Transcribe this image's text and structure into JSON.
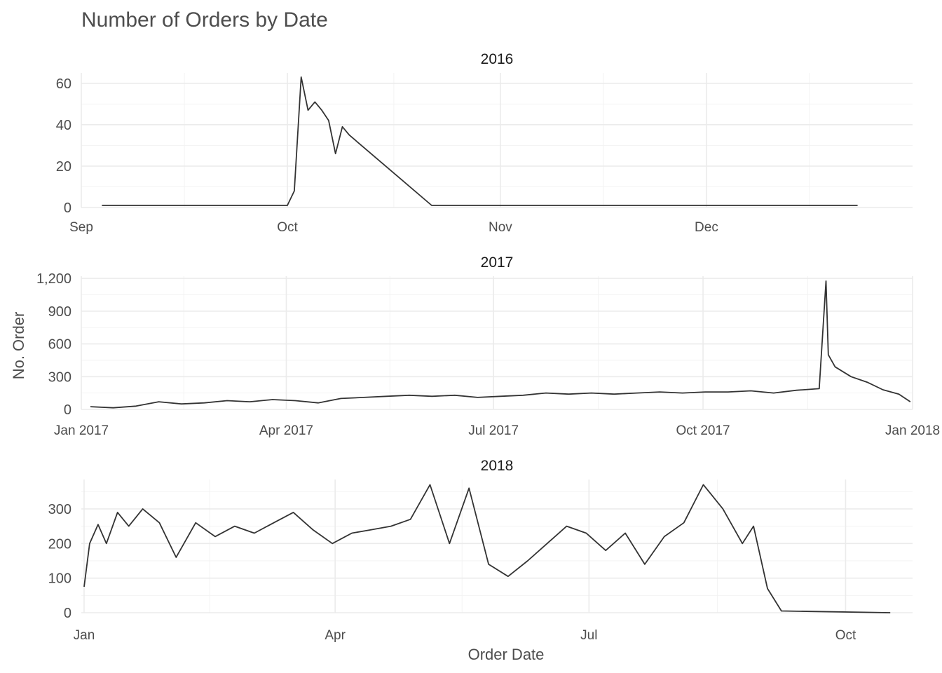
{
  "chart_data": {
    "type": "line",
    "title": "Number of Orders by Date",
    "xlabel": "Order Date",
    "ylabel": "No. Order",
    "grid": true,
    "legend": "none",
    "line_color": "#333333",
    "panels": [
      {
        "strip": "2016",
        "xlim": [
          "2016-09-01",
          "2016-12-31"
        ],
        "ylim": [
          0,
          65
        ],
        "y_ticks": [
          0,
          20,
          40,
          60
        ],
        "y_tick_labels": [
          "0",
          "20",
          "40",
          "60"
        ],
        "x_ticks": [
          "2016-09-01",
          "2016-10-01",
          "2016-11-01",
          "2016-12-01"
        ],
        "x_tick_labels": [
          "Sep",
          "Oct",
          "Nov",
          "Dec"
        ],
        "x": [
          "2016-09-04",
          "2016-10-01",
          "2016-10-02",
          "2016-10-03",
          "2016-10-04",
          "2016-10-05",
          "2016-10-06",
          "2016-10-07",
          "2016-10-08",
          "2016-10-09",
          "2016-10-10",
          "2016-10-22",
          "2016-12-23"
        ],
        "y": [
          1,
          1,
          8,
          63,
          47,
          51,
          47,
          42,
          26,
          39,
          35,
          1,
          1
        ]
      },
      {
        "strip": "2017",
        "xlim": [
          "2017-01-01",
          "2018-01-01"
        ],
        "ylim": [
          0,
          1220
        ],
        "y_ticks": [
          0,
          300,
          600,
          900,
          1200
        ],
        "y_tick_labels": [
          "0",
          "300",
          "600",
          "900",
          "1,200"
        ],
        "x_ticks": [
          "2017-01-01",
          "2017-04-01",
          "2017-07-01",
          "2017-10-01",
          "2018-01-01"
        ],
        "x_tick_labels": [
          "Jan 2017",
          "Apr 2017",
          "Jul 2017",
          "Oct 2017",
          "Jan 2018"
        ],
        "x": [
          "2017-01-05",
          "2017-01-15",
          "2017-01-25",
          "2017-02-04",
          "2017-02-14",
          "2017-02-24",
          "2017-03-06",
          "2017-03-16",
          "2017-03-26",
          "2017-04-05",
          "2017-04-15",
          "2017-04-25",
          "2017-05-05",
          "2017-05-15",
          "2017-05-25",
          "2017-06-04",
          "2017-06-14",
          "2017-06-24",
          "2017-07-04",
          "2017-07-14",
          "2017-07-24",
          "2017-08-03",
          "2017-08-13",
          "2017-08-23",
          "2017-09-02",
          "2017-09-12",
          "2017-09-22",
          "2017-10-02",
          "2017-10-12",
          "2017-10-22",
          "2017-11-01",
          "2017-11-11",
          "2017-11-21",
          "2017-11-24",
          "2017-11-25",
          "2017-11-28",
          "2017-12-05",
          "2017-12-12",
          "2017-12-19",
          "2017-12-26",
          "2017-12-31"
        ],
        "y": [
          25,
          15,
          30,
          70,
          50,
          60,
          80,
          70,
          90,
          80,
          60,
          100,
          110,
          120,
          130,
          120,
          130,
          110,
          120,
          130,
          150,
          140,
          150,
          140,
          150,
          160,
          150,
          160,
          160,
          170,
          150,
          175,
          190,
          1176,
          500,
          390,
          300,
          250,
          180,
          140,
          70
        ]
      },
      {
        "strip": "2018",
        "xlim": [
          "2017-12-31",
          "2018-10-25"
        ],
        "ylim": [
          0,
          385
        ],
        "y_ticks": [
          0,
          100,
          200,
          300
        ],
        "y_tick_labels": [
          "0",
          "100",
          "200",
          "300"
        ],
        "x_ticks": [
          "2018-01-01",
          "2018-04-01",
          "2018-07-01",
          "2018-10-01"
        ],
        "x_tick_labels": [
          "Jan",
          "Apr",
          "Jul",
          "Oct"
        ],
        "x": [
          "2018-01-01",
          "2018-01-03",
          "2018-01-06",
          "2018-01-09",
          "2018-01-13",
          "2018-01-17",
          "2018-01-22",
          "2018-01-28",
          "2018-02-03",
          "2018-02-10",
          "2018-02-17",
          "2018-02-24",
          "2018-03-03",
          "2018-03-10",
          "2018-03-17",
          "2018-03-24",
          "2018-03-31",
          "2018-04-07",
          "2018-04-14",
          "2018-04-21",
          "2018-04-28",
          "2018-05-05",
          "2018-05-12",
          "2018-05-19",
          "2018-05-26",
          "2018-06-02",
          "2018-06-09",
          "2018-06-16",
          "2018-06-23",
          "2018-06-30",
          "2018-07-07",
          "2018-07-14",
          "2018-07-21",
          "2018-07-28",
          "2018-08-04",
          "2018-08-11",
          "2018-08-18",
          "2018-08-25",
          "2018-08-29",
          "2018-09-03",
          "2018-09-08",
          "2018-10-17"
        ],
        "y": [
          75,
          200,
          255,
          200,
          290,
          250,
          300,
          260,
          160,
          260,
          220,
          250,
          230,
          260,
          290,
          240,
          200,
          230,
          240,
          250,
          270,
          370,
          200,
          360,
          140,
          105,
          150,
          200,
          250,
          230,
          180,
          230,
          140,
          220,
          260,
          370,
          300,
          200,
          250,
          70,
          5,
          0
        ]
      }
    ]
  }
}
